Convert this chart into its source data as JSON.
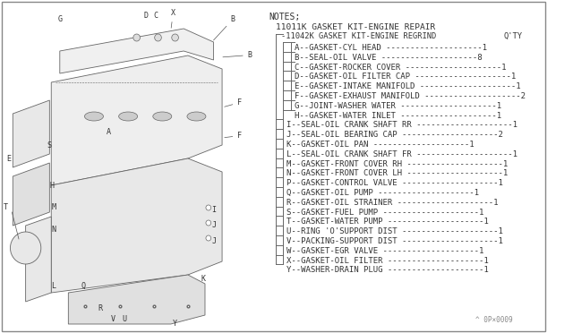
{
  "bg_color": "#ffffff",
  "title": "NOTES;",
  "kit1": "11011K GASKET KIT-ENGINE REPAIR",
  "kit2": "-11042K GASKET KIT-ENGINE REGRIND",
  "qty_label": "Q'TY",
  "parts": [
    {
      "code": "A",
      "desc": "GASKET-CYL HEAD",
      "qty": "1",
      "indent": 2,
      "group": "inner"
    },
    {
      "code": "B",
      "desc": "SEAL-OIL VALVE",
      "qty": "8",
      "indent": 2,
      "group": "inner"
    },
    {
      "code": "C",
      "desc": "GASKET-ROCKER COVER",
      "qty": "1",
      "indent": 2,
      "group": "inner"
    },
    {
      "code": "D",
      "desc": "GASKET-OIL FILTER CAP",
      "qty": "1",
      "indent": 2,
      "group": "inner"
    },
    {
      "code": "E",
      "desc": "GASKET-INTAKE MANIFOLD",
      "qty": "1",
      "indent": 2,
      "group": "inner"
    },
    {
      "code": "F",
      "desc": "GASKET-EXHAUST MANIFOLD",
      "qty": "2",
      "indent": 2,
      "group": "inner"
    },
    {
      "code": "G",
      "desc": "JOINT-WASHER WATER",
      "qty": "1",
      "indent": 2,
      "group": "inner"
    },
    {
      "code": "H",
      "desc": "GASKET-WATER INLET",
      "qty": "1",
      "indent": 2,
      "group": "inner"
    },
    {
      "code": "I",
      "desc": "SEAL-OIL CRANK SHAFT RR",
      "qty": "1",
      "indent": 1,
      "group": "outer"
    },
    {
      "code": "J",
      "desc": "SEAL-OIL BEARING CAP",
      "qty": "2",
      "indent": 1,
      "group": "outer"
    },
    {
      "code": "K",
      "desc": "GASKET-OIL PAN",
      "qty": "1",
      "indent": 1,
      "group": "outer"
    },
    {
      "code": "L",
      "desc": "SEAL-OIL CRANK SHAFT FR",
      "qty": "1",
      "indent": 1,
      "group": "outer"
    },
    {
      "code": "M",
      "desc": "GASKET-FRONT COVER RH",
      "qty": "1",
      "indent": 1,
      "group": "outer"
    },
    {
      "code": "N",
      "desc": "GASKET-FRONT COVER LH",
      "qty": "1",
      "indent": 1,
      "group": "outer"
    },
    {
      "code": "P",
      "desc": "GASKET-CONTROL VALVE",
      "qty": "1",
      "indent": 1,
      "group": "outer"
    },
    {
      "code": "Q",
      "desc": "GASKET-OIL PUMP",
      "qty": "1",
      "indent": 1,
      "group": "outer"
    },
    {
      "code": "R",
      "desc": "GASKET-OIL STRAINER",
      "qty": "1",
      "indent": 1,
      "group": "outer"
    },
    {
      "code": "S",
      "desc": "GASKET-FUEL PUMP",
      "qty": "1",
      "indent": 1,
      "group": "outer"
    },
    {
      "code": "T",
      "desc": "GASKET-WATER PUMP",
      "qty": "1",
      "indent": 1,
      "group": "outer"
    },
    {
      "code": "U",
      "desc": "RING 'O'SUPPORT DIST",
      "qty": "1",
      "indent": 1,
      "group": "outer"
    },
    {
      "code": "V",
      "desc": "PACKING-SUPPORT DIST",
      "qty": "1",
      "indent": 1,
      "group": "outer"
    },
    {
      "code": "W",
      "desc": "GASKET-EGR VALVE",
      "qty": "1",
      "indent": 1,
      "group": "outer"
    },
    {
      "code": "X",
      "desc": "GASKET-OIL FILTER",
      "qty": "1",
      "indent": 1,
      "group": "outer"
    },
    {
      "code": "Y",
      "desc": "WASHER-DRAIN PLUG",
      "qty": "1",
      "indent": 1,
      "group": "outer"
    }
  ],
  "footer": "^ 0P×0009",
  "text_color": "#555555",
  "dark_color": "#333333",
  "font_size": 6.5,
  "title_font_size": 7.5
}
